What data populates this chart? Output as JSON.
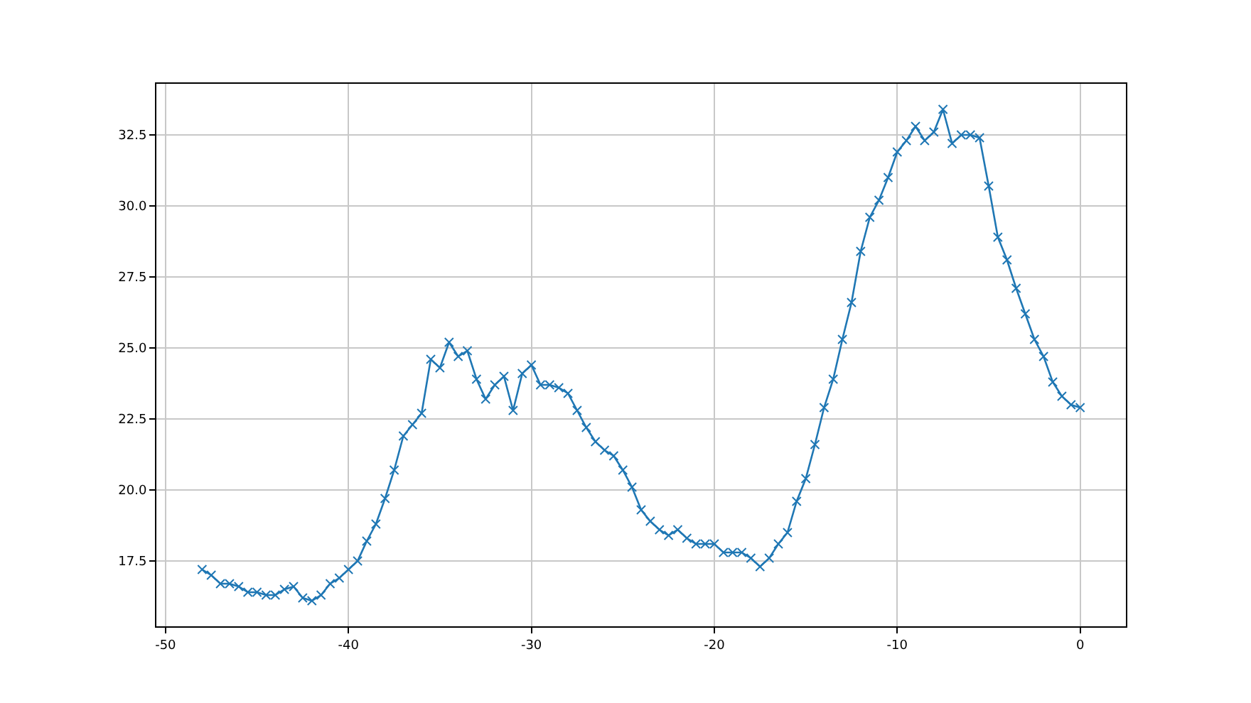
{
  "chart_data": {
    "type": "line",
    "x": [
      -48,
      -47.5,
      -47,
      -46.5,
      -46,
      -45.5,
      -45,
      -44.5,
      -44,
      -43.5,
      -43,
      -42.5,
      -42,
      -41.5,
      -41,
      -40.5,
      -40,
      -39.5,
      -39,
      -38.5,
      -38,
      -37.5,
      -37,
      -36.5,
      -36,
      -35.5,
      -35,
      -34.5,
      -34,
      -33.5,
      -33,
      -32.5,
      -32,
      -31.5,
      -31,
      -30.5,
      -30,
      -29.5,
      -29,
      -28.5,
      -28,
      -27.5,
      -27,
      -26.5,
      -26,
      -25.5,
      -25,
      -24.5,
      -24,
      -23.5,
      -23,
      -22.5,
      -22,
      -21.5,
      -21,
      -20.5,
      -20,
      -19.5,
      -19,
      -18.5,
      -18,
      -17.5,
      -17,
      -16.5,
      -16,
      -15.5,
      -15,
      -14.5,
      -14,
      -13.5,
      -13,
      -12.5,
      -12,
      -11.5,
      -11,
      -10.5,
      -10,
      -9.5,
      -9,
      -8.5,
      -8,
      -7.5,
      -7,
      -6.5,
      -6,
      -5.5,
      -5,
      -4.5,
      -4,
      -3.5,
      -3,
      -2.5,
      -2,
      -1.5,
      -1,
      -0.5,
      0
    ],
    "series": [
      {
        "color": "#1f77b4",
        "values": [
          17.2,
          17.0,
          16.7,
          16.7,
          16.6,
          16.4,
          16.4,
          16.3,
          16.3,
          16.5,
          16.6,
          16.2,
          16.1,
          16.3,
          16.7,
          16.9,
          17.2,
          17.5,
          18.2,
          18.8,
          19.7,
          20.7,
          21.9,
          22.3,
          22.7,
          24.6,
          24.3,
          25.2,
          24.7,
          24.9,
          23.9,
          23.2,
          23.7,
          24.0,
          22.8,
          24.1,
          24.4,
          23.7,
          23.7,
          23.6,
          23.4,
          22.8,
          22.2,
          21.7,
          21.4,
          21.2,
          20.7,
          20.1,
          19.3,
          18.9,
          18.6,
          18.4,
          18.6,
          18.3,
          18.1,
          18.1,
          18.1,
          17.8,
          17.8,
          17.8,
          17.6,
          17.3,
          17.6,
          18.1,
          18.5,
          19.6,
          20.4,
          21.6,
          22.9,
          23.9,
          25.3,
          26.6,
          28.4,
          29.6,
          30.2,
          31.0,
          31.9,
          32.3,
          32.8,
          32.3,
          32.6,
          33.4,
          32.2,
          32.5,
          32.5,
          32.4,
          30.7,
          28.9,
          28.1,
          27.1,
          26.2,
          25.3,
          24.7,
          23.8,
          23.3,
          23.0,
          22.9
        ]
      }
    ],
    "xlim": [
      -50.5,
      2.5
    ],
    "xticks": [
      -50,
      -40,
      -30,
      -20,
      -10,
      0
    ],
    "ylim": [
      15.2,
      34.3
    ],
    "yticks": [
      17.5,
      {
        "value": 20,
        "label": "20.0"
      },
      22.5,
      {
        "value": 25,
        "label": "25.0"
      },
      27.5,
      {
        "value": 30,
        "label": "30.0"
      },
      32.5
    ],
    "grid": true,
    "marker": "cross",
    "line_style": "solid"
  }
}
